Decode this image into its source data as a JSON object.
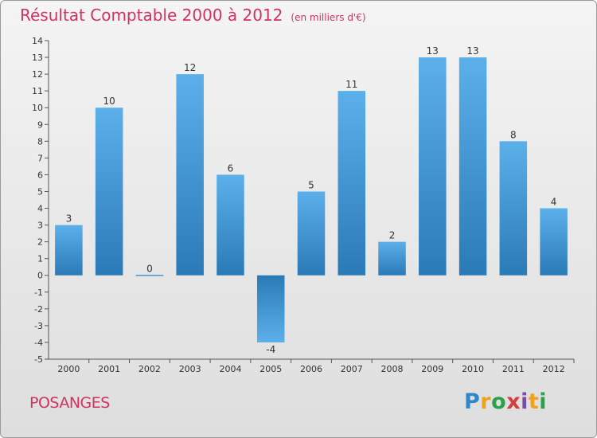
{
  "header": {
    "title": "Résultat Comptable 2000 à 2012",
    "subtitle": "(en milliers d'€)"
  },
  "footer": {
    "town": "POSANGES",
    "logo": [
      "P",
      "r",
      "o",
      "x",
      "i",
      "t",
      "i"
    ]
  },
  "chart_data": {
    "type": "bar",
    "title": "Résultat Comptable 2000 à 2012",
    "subtitle": "(en milliers d'€)",
    "categories": [
      "2000",
      "2001",
      "2002",
      "2003",
      "2004",
      "2005",
      "2006",
      "2007",
      "2008",
      "2009",
      "2010",
      "2011",
      "2012"
    ],
    "values": [
      3,
      10,
      0,
      12,
      6,
      -4,
      5,
      11,
      2,
      13,
      13,
      8,
      4
    ],
    "xlabel": "",
    "ylabel": "",
    "ylim": [
      -5,
      14
    ],
    "yticks": [
      -5,
      -4,
      -3,
      -2,
      -1,
      0,
      1,
      2,
      3,
      4,
      5,
      6,
      7,
      8,
      9,
      10,
      11,
      12,
      13,
      14
    ],
    "grid": false,
    "colors": {
      "bar_light": "#5cb0ea",
      "bar_dark": "#2a7ab8",
      "axis": "#555555"
    }
  }
}
